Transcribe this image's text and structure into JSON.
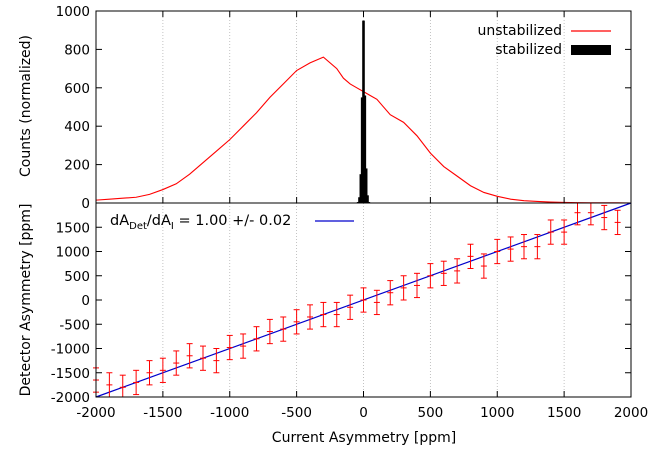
{
  "colors": {
    "unstabilized": "#ff0000",
    "stabilized": "#000000",
    "fit": "#0000cc",
    "grid": "#b4b4b4",
    "axes": "#000000"
  },
  "chart_data": [
    {
      "type": "line",
      "ylabel": "Counts (normalized)",
      "xlim": [
        -2000,
        2000
      ],
      "ylim": [
        0,
        1000
      ],
      "xgrid": true,
      "legend_placement": "top-right",
      "y_ticks": [
        "0",
        "200",
        "400",
        "600",
        "800",
        "1000"
      ],
      "series": [
        {
          "name": "unstabilized",
          "x": [
            -2000,
            -1900,
            -1800,
            -1700,
            -1600,
            -1500,
            -1400,
            -1300,
            -1200,
            -1100,
            -1000,
            -900,
            -800,
            -700,
            -600,
            -500,
            -400,
            -300,
            -200,
            -150,
            -100,
            -50,
            0,
            50,
            100,
            200,
            300,
            400,
            500,
            600,
            700,
            800,
            900,
            1000,
            1100,
            1200,
            1300,
            1400,
            1500,
            1600,
            1700,
            1800,
            1900,
            2000
          ],
          "values": [
            15,
            20,
            25,
            30,
            45,
            70,
            100,
            150,
            210,
            270,
            330,
            400,
            470,
            550,
            620,
            690,
            730,
            760,
            700,
            650,
            620,
            600,
            580,
            560,
            540,
            460,
            420,
            350,
            260,
            190,
            140,
            90,
            55,
            35,
            20,
            12,
            8,
            5,
            3,
            2,
            1,
            1,
            1,
            0
          ]
        },
        {
          "name": "stabilized",
          "x": [
            -40,
            -30,
            -20,
            -10,
            0,
            10,
            20,
            30,
            40
          ],
          "values": [
            5,
            30,
            150,
            550,
            950,
            560,
            180,
            40,
            5
          ]
        }
      ]
    },
    {
      "type": "scatter",
      "xlabel": "Current Asymmetry [ppm]",
      "ylabel": "Detector Asymmetry [ppm]",
      "xlim": [
        -2000,
        2000
      ],
      "ylim": [
        -2000,
        2000
      ],
      "xgrid": true,
      "x_ticks": [
        "-2000",
        "-1500",
        "-1000",
        "-500",
        "0",
        "500",
        "1000",
        "1500",
        "2000"
      ],
      "y_ticks": [
        "-2000",
        "-1500",
        "-1000",
        "-500",
        "0",
        "500",
        "1000",
        "1500"
      ],
      "fit": {
        "label": "dA",
        "label_sub1": "Det",
        "label_mid": "/dA",
        "label_sub2": "I",
        "label_tail": " = 1.00 +/- 0.02",
        "slope": 1.0,
        "intercept": 0
      },
      "x": [
        -2000,
        -1900,
        -1800,
        -1700,
        -1600,
        -1500,
        -1400,
        -1300,
        -1200,
        -1100,
        -1000,
        -900,
        -800,
        -700,
        -600,
        -500,
        -400,
        -300,
        -200,
        -100,
        0,
        100,
        200,
        300,
        400,
        500,
        600,
        700,
        800,
        900,
        1000,
        1100,
        1200,
        1300,
        1400,
        1500,
        1600,
        1700,
        1800,
        1900
      ],
      "values": [
        -1650,
        -1750,
        -1800,
        -1700,
        -1500,
        -1450,
        -1300,
        -1150,
        -1200,
        -1250,
        -980,
        -950,
        -800,
        -650,
        -600,
        -450,
        -350,
        -300,
        -300,
        -150,
        0,
        -50,
        150,
        250,
        300,
        500,
        550,
        600,
        900,
        700,
        1000,
        1050,
        1100,
        1100,
        1400,
        1400,
        1800,
        1800,
        1700,
        1600
      ],
      "error": 250
    }
  ]
}
